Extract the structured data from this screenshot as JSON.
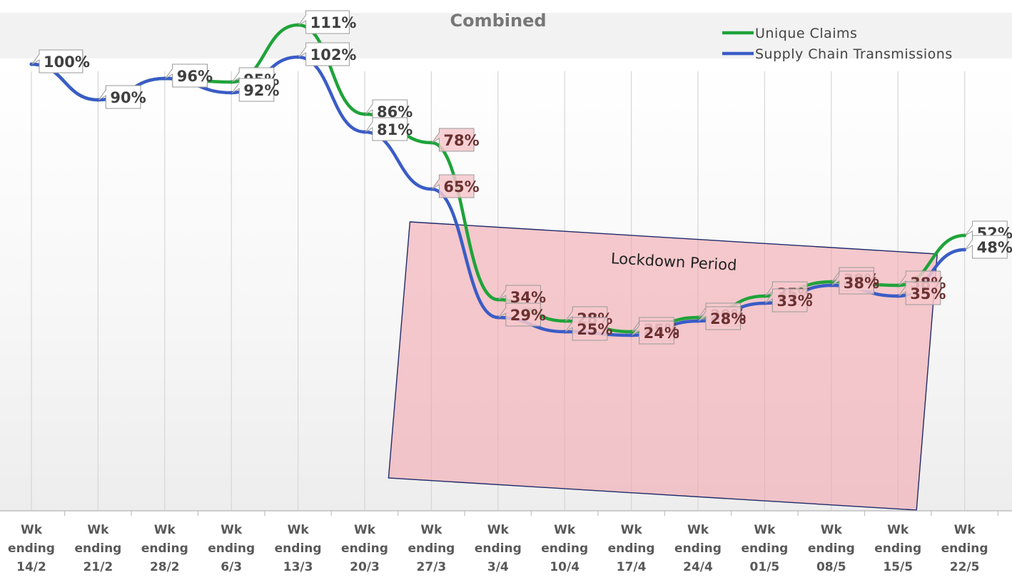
{
  "chart_data": {
    "type": "line",
    "title": "Combined",
    "categories": [
      [
        "Wk",
        "ending",
        "14/2"
      ],
      [
        "Wk",
        "ending",
        "21/2"
      ],
      [
        "Wk",
        "ending",
        "28/2"
      ],
      [
        "Wk",
        "ending",
        "6/3"
      ],
      [
        "Wk",
        "ending",
        "13/3"
      ],
      [
        "Wk",
        "ending",
        "20/3"
      ],
      [
        "Wk",
        "ending",
        "27/3"
      ],
      [
        "Wk",
        "ending",
        "3/4"
      ],
      [
        "Wk",
        "ending",
        "10/4"
      ],
      [
        "Wk",
        "ending",
        "17/4"
      ],
      [
        "Wk",
        "ending",
        "24/4"
      ],
      [
        "Wk",
        "ending",
        "01/5"
      ],
      [
        "Wk",
        "ending",
        "08/5"
      ],
      [
        "Wk",
        "ending",
        "15/5"
      ],
      [
        "Wk",
        "ending",
        "22/5"
      ]
    ],
    "series": [
      {
        "name": "Unique Claims",
        "color": "#1fa33a",
        "values": [
          100,
          90,
          96,
          95,
          111,
          86,
          78,
          34,
          28,
          25,
          29,
          35,
          39,
          38,
          52
        ],
        "labels": [
          "100%",
          "90%",
          "96%",
          "95%",
          "111%",
          "86%",
          "78%",
          "34%",
          "28%",
          "25%",
          "29%",
          "35%",
          "39%",
          "38%",
          "52%"
        ]
      },
      {
        "name": "Supply Chain Transmissions",
        "color": "#3a5cc6",
        "values": [
          100,
          90,
          96,
          92,
          102,
          81,
          65,
          29,
          25,
          24,
          28,
          33,
          38,
          35,
          48
        ],
        "labels": [
          "100%",
          "90%",
          "96%",
          "92%",
          "102%",
          "81%",
          "65%",
          "29%",
          "25%",
          "24%",
          "28%",
          "33%",
          "38%",
          "35%",
          "48%"
        ]
      }
    ],
    "annotation": {
      "label": "Lockdown Period",
      "from_category": "Wk ending 27/3",
      "to_category": "Wk ending 15/5",
      "fill": "#f0a0a8"
    },
    "legend_position": "top-right",
    "ylim": [
      0,
      130
    ],
    "grid": "vertical"
  }
}
